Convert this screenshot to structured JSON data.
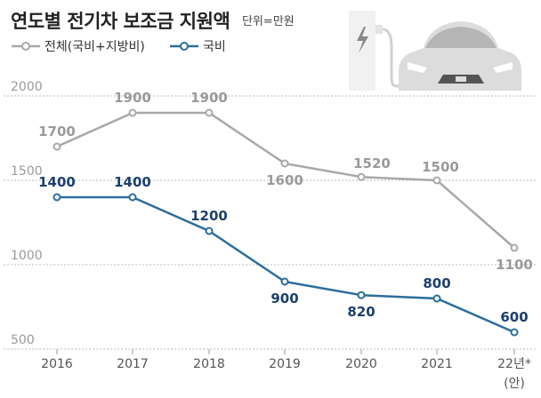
{
  "title": "연도별 전기차 보조금 지원액",
  "unit": "단위=만원",
  "legend": [
    {
      "name": "전체(국비+지방비)",
      "color": "#a8a8a8"
    },
    {
      "name": "국비",
      "color": "#2c6d9c"
    }
  ],
  "icon": "electric-car-charging-icon",
  "chart_data": {
    "type": "line",
    "title": "연도별 전기차 보조금 지원액",
    "categories": [
      "2016",
      "2017",
      "2018",
      "2019",
      "2020",
      "2021",
      "22년*"
    ],
    "category_sub": [
      "",
      "",
      "",
      "",
      "",
      "",
      "(안)"
    ],
    "yticks": [
      "2000",
      "1500",
      "1000",
      "500"
    ],
    "ylim": [
      500,
      2000
    ],
    "grid": true,
    "series": [
      {
        "name": "전체(국비+지방비)",
        "color": "#a8a8a8",
        "label_color": "#9a9a9a",
        "values": [
          1700,
          1900,
          1900,
          1600,
          1520,
          1500,
          1100
        ],
        "labels": [
          "1700",
          "1900",
          "1900",
          "1600",
          "1520",
          "1500",
          "1100"
        ]
      },
      {
        "name": "국비",
        "color": "#2c6d9c",
        "label_color": "#1e3f6e",
        "values": [
          1400,
          1400,
          1200,
          900,
          820,
          800,
          600
        ],
        "labels": [
          "1400",
          "1400",
          "1200",
          "900",
          "820",
          "800",
          "600"
        ]
      }
    ]
  }
}
